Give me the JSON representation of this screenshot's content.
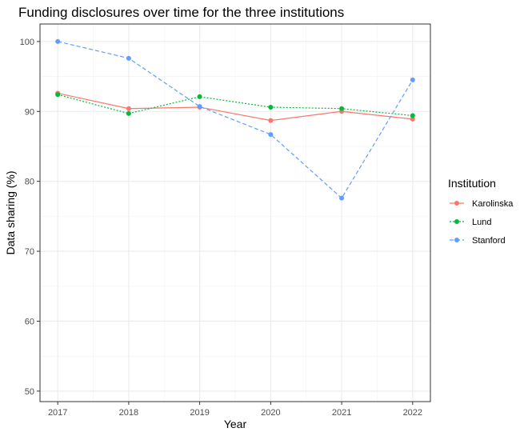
{
  "chart_data": {
    "type": "line",
    "title": "Funding disclosures over time for the three institutions",
    "xlabel": "Year",
    "ylabel": "Data sharing (%)",
    "x": [
      "2017",
      "2018",
      "2019",
      "2020",
      "2021",
      "2022"
    ],
    "xlim": [
      2016.75,
      2022.25
    ],
    "ylim": [
      48.5,
      102.5
    ],
    "yticks": [
      50,
      60,
      70,
      80,
      90,
      100
    ],
    "grid": true,
    "legend": {
      "title": "Institution",
      "position": "right"
    },
    "series": [
      {
        "name": "Karolinska",
        "color": "#F8766D",
        "linestyle": "solid",
        "values": [
          92.6,
          90.4,
          90.6,
          88.7,
          90.0,
          88.9
        ]
      },
      {
        "name": "Lund",
        "color": "#00BA38",
        "linestyle": "dotted",
        "values": [
          92.4,
          89.7,
          92.1,
          90.6,
          90.4,
          89.4
        ]
      },
      {
        "name": "Stanford",
        "color": "#619CFF",
        "linestyle": "dashed",
        "values": [
          100.0,
          97.6,
          90.7,
          86.7,
          77.6,
          94.5
        ]
      }
    ]
  }
}
